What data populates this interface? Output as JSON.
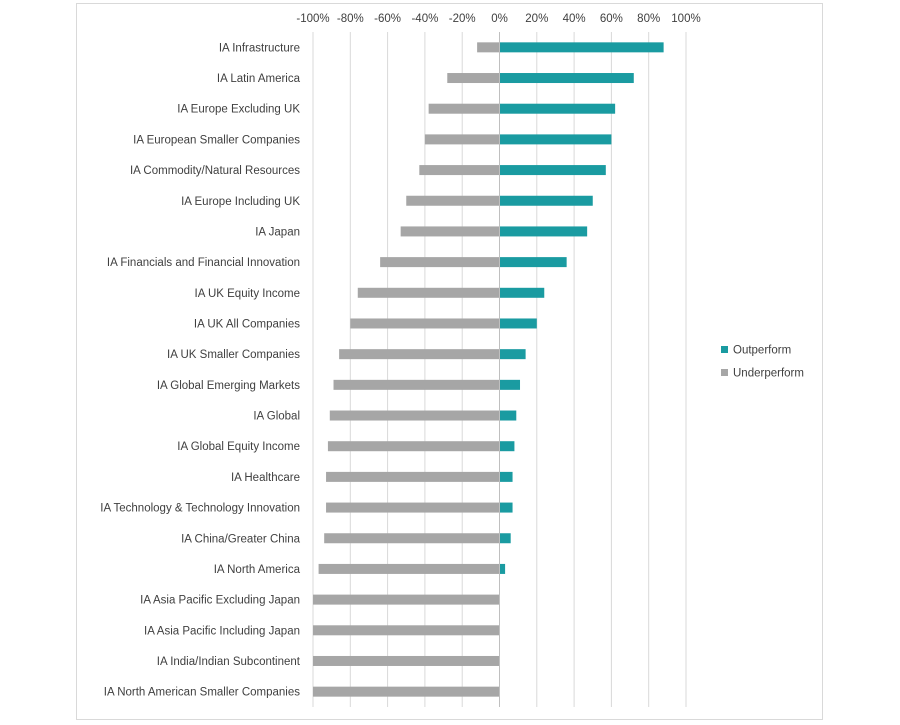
{
  "chart_data": {
    "type": "bar",
    "orientation": "horizontal",
    "stacked": true,
    "title": "",
    "xlabel": "",
    "ylabel": "",
    "xlim": [
      -100,
      100
    ],
    "x_tick_labels": [
      "-100%",
      "-80%",
      "-60%",
      "-40%",
      "-20%",
      "0%",
      "20%",
      "40%",
      "60%",
      "80%",
      "100%"
    ],
    "grid": "vertical",
    "legend_position": "right",
    "categories": [
      "IA Infrastructure",
      "IA Latin America",
      "IA Europe Excluding UK",
      "IA European Smaller Companies",
      "IA Commodity/Natural Resources",
      "IA Europe Including UK",
      "IA Japan",
      "IA Financials and Financial Innovation",
      "IA UK Equity Income",
      "IA UK All Companies",
      "IA UK Smaller Companies",
      "IA Global Emerging Markets",
      "IA Global",
      "IA Global Equity Income",
      "IA Healthcare",
      "IA Technology & Technology Innovation",
      "IA China/Greater China",
      "IA North America",
      "IA Asia Pacific Excluding Japan",
      "IA Asia Pacific Including Japan",
      "IA India/Indian Subcontinent",
      "IA North American Smaller Companies"
    ],
    "series": [
      {
        "name": "Outperform",
        "color": "#1a9ba1",
        "values": [
          88,
          72,
          62,
          60,
          57,
          50,
          47,
          36,
          24,
          20,
          14,
          11,
          9,
          8,
          7,
          7,
          6,
          3,
          0,
          0,
          0,
          0
        ]
      },
      {
        "name": "Underperform",
        "color": "#a6a6a6",
        "values": [
          -12,
          -28,
          -38,
          -40,
          -43,
          -50,
          -53,
          -64,
          -76,
          -80,
          -86,
          -89,
          -91,
          -92,
          -93,
          -93,
          -94,
          -97,
          -100,
          -100,
          -100,
          -100
        ]
      }
    ]
  }
}
